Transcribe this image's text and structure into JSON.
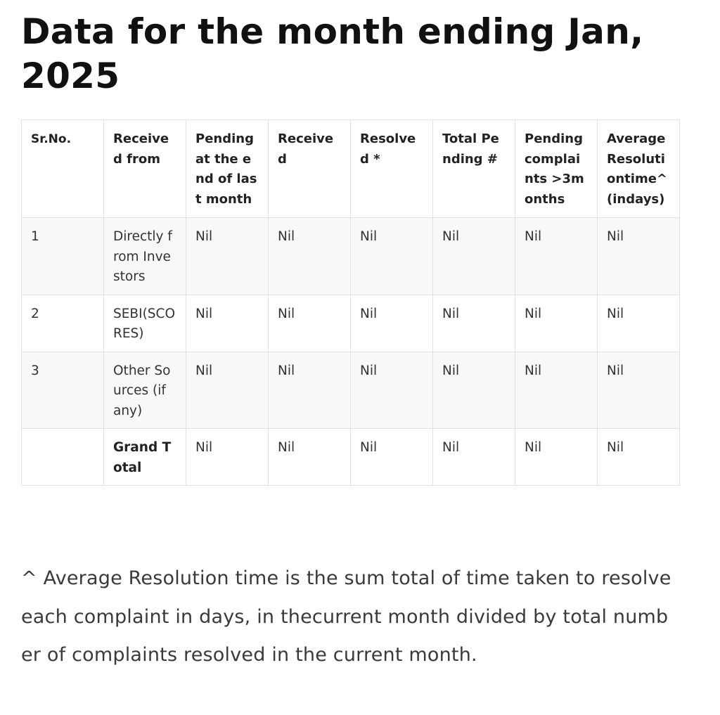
{
  "title": "Data for the month ending Jan, 2025",
  "table": {
    "headers": [
      "Sr.No.",
      "Received from",
      "Pending at the end of last month",
      "Received",
      "Resolved *",
      "Total Pending #",
      "Pending complaints >3months",
      "Average Resolutiontime^ (indays)"
    ],
    "rows": [
      [
        "1",
        "Directly from Investors",
        "Nil",
        "Nil",
        "Nil",
        "Nil",
        "Nil",
        "Nil"
      ],
      [
        "2",
        "SEBI(SCORES)",
        "Nil",
        "Nil",
        "Nil",
        "Nil",
        "Nil",
        "Nil"
      ],
      [
        "3",
        "Other Sources (if any)",
        "Nil",
        "Nil",
        "Nil",
        "Nil",
        "Nil",
        "Nil"
      ],
      [
        "",
        "Grand Total",
        "Nil",
        "Nil",
        "Nil",
        "Nil",
        "Nil",
        "Nil"
      ]
    ]
  },
  "footnote": "^ Average Resolution time is the sum total of time taken to resolve each complaint in days, in thecurrent month divided by total number of complaints resolved in the current month."
}
